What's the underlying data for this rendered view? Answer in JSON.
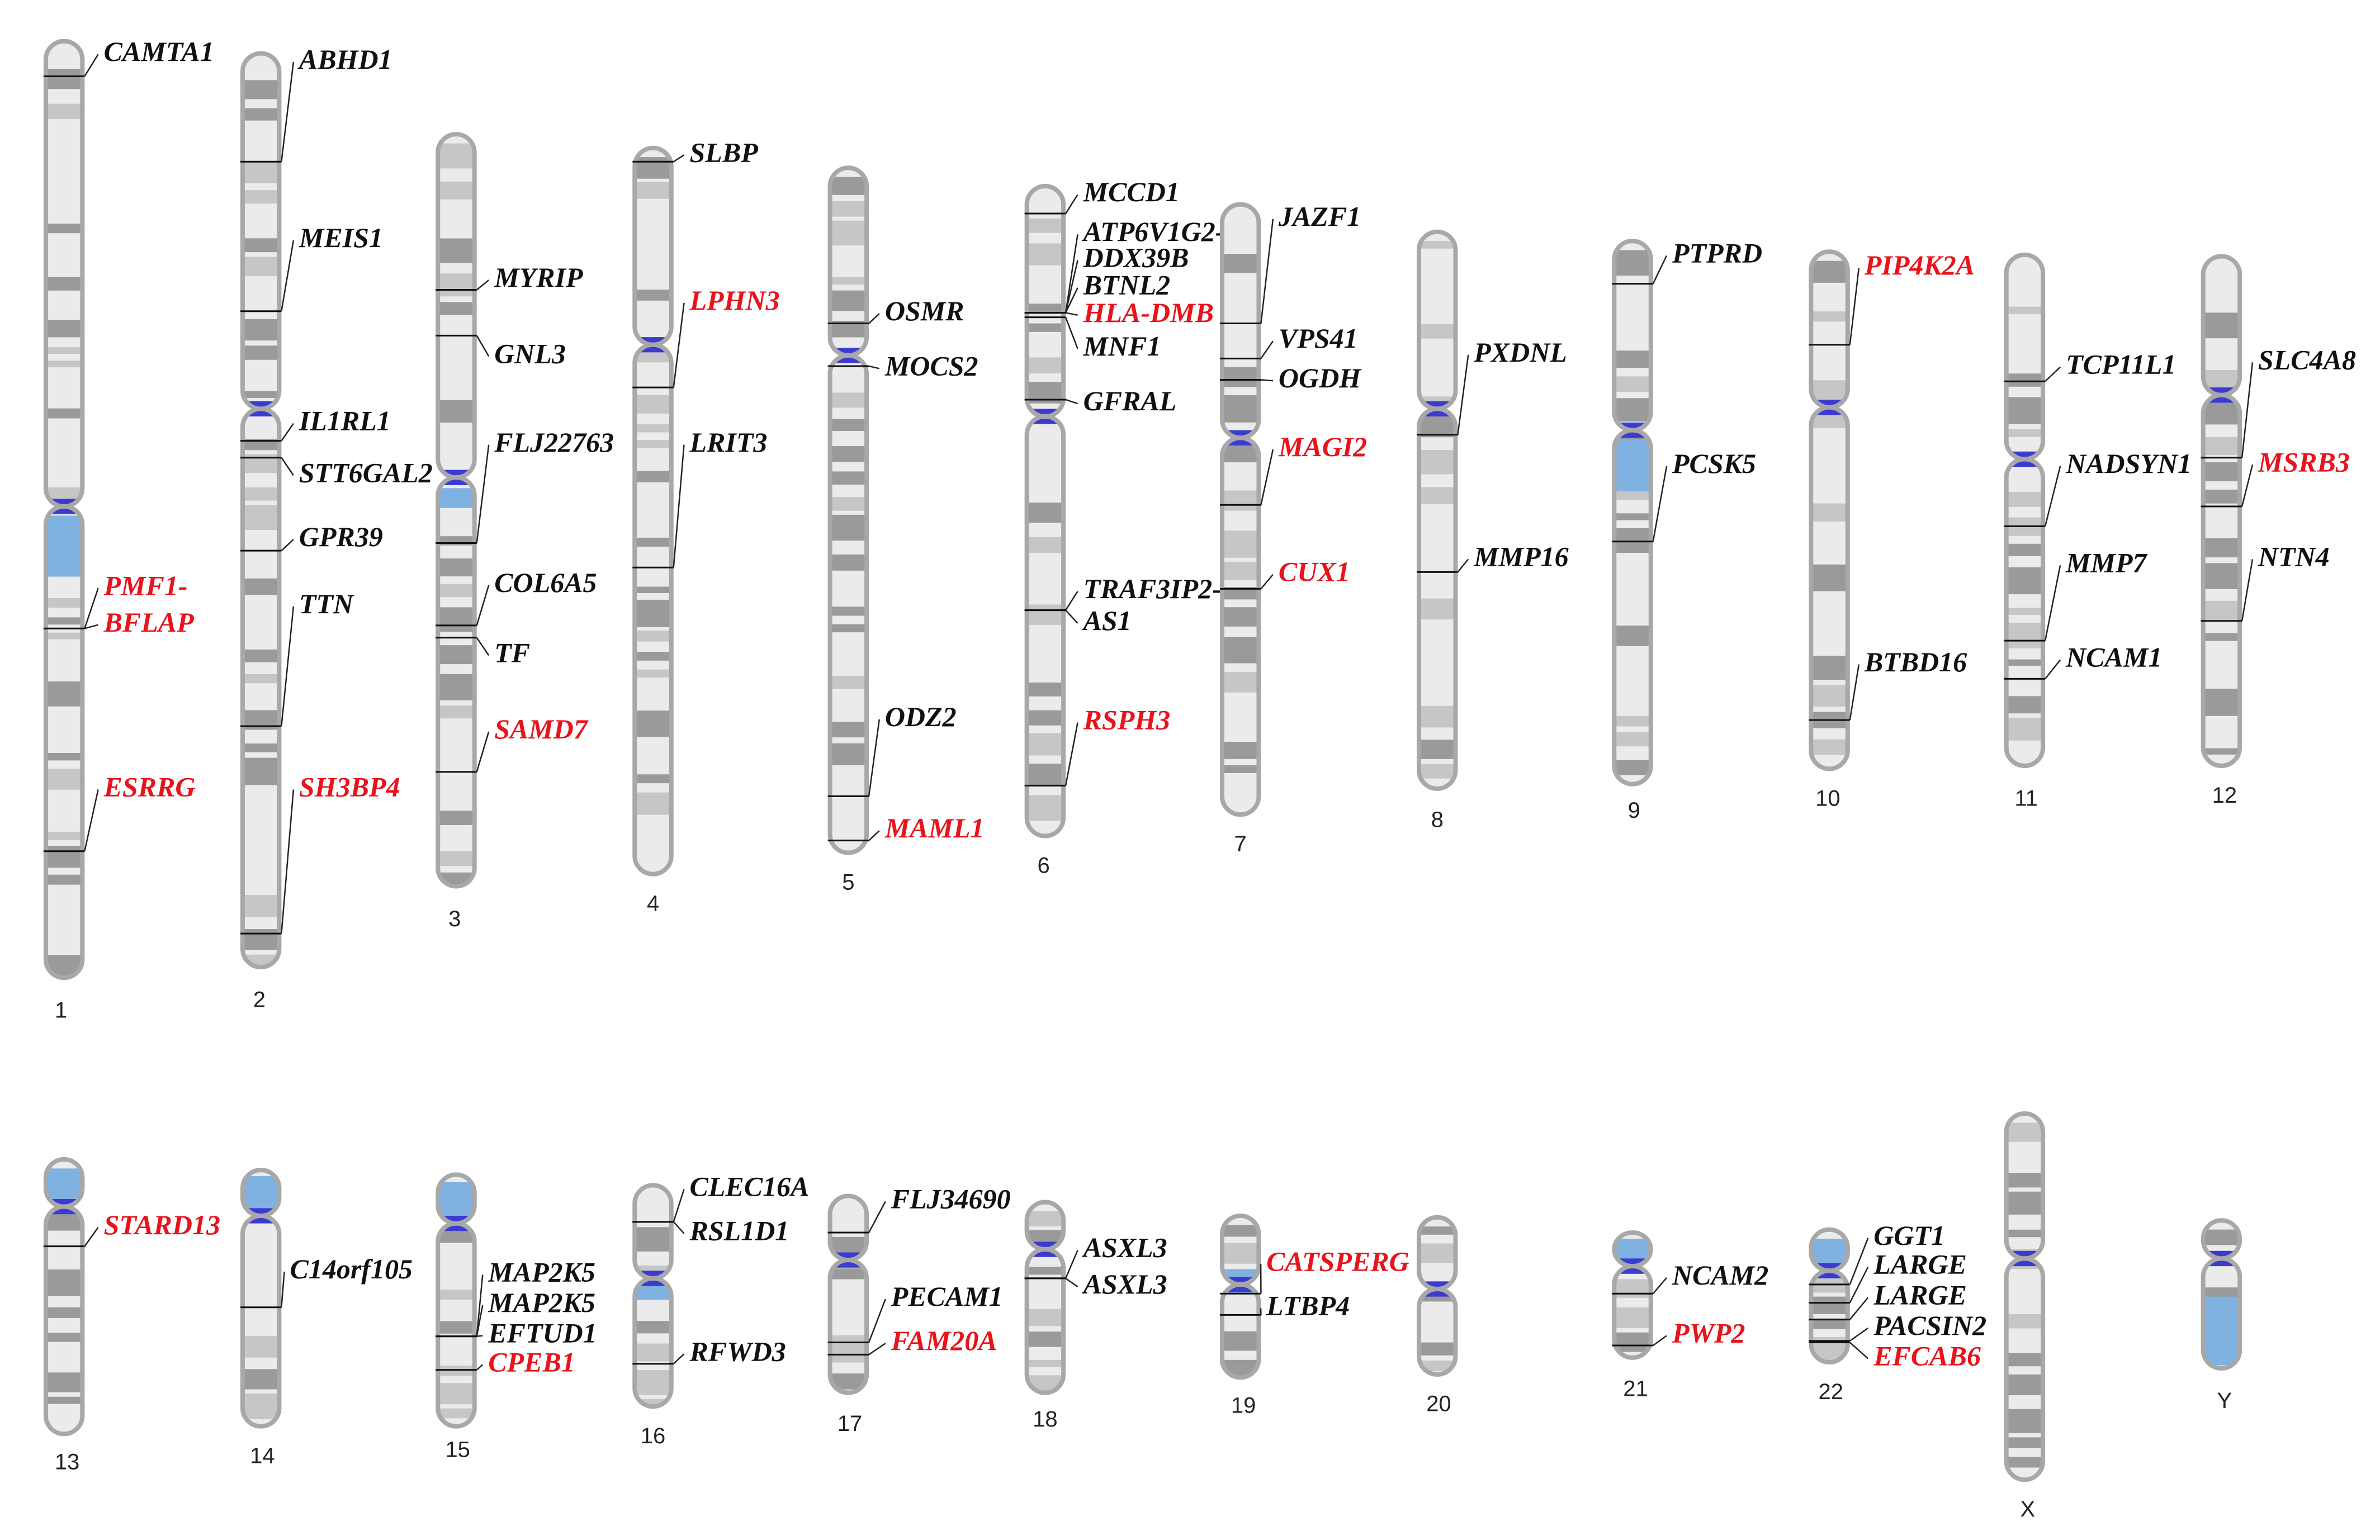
{
  "colors": {
    "outline": "#a8a8a8",
    "band_dark": "#9a9a9a",
    "band_mid": "#c6c6c6",
    "band_light": "#ebebeb",
    "centromere": "#3b3bd1",
    "heterochromatin": "#7fb2e0",
    "gene_black": "#111111",
    "gene_red": "#e8131b"
  },
  "chromosomes": [
    {
      "name": "1",
      "label": "1",
      "genes": [
        {
          "label": "CAMTA1",
          "highlight": false
        },
        {
          "label": "PMF1-",
          "highlight": true
        },
        {
          "label": "BFLAP",
          "highlight": true
        },
        {
          "label": "ESRRG",
          "highlight": true
        }
      ]
    },
    {
      "name": "2",
      "label": "2",
      "genes": [
        {
          "label": "ABHD1",
          "highlight": false
        },
        {
          "label": "MEIS1",
          "highlight": false
        },
        {
          "label": "IL1RL1",
          "highlight": false
        },
        {
          "label": "STT6GAL2",
          "highlight": false
        },
        {
          "label": "GPR39",
          "highlight": false
        },
        {
          "label": "TTN",
          "highlight": false
        },
        {
          "label": "SH3BP4",
          "highlight": true
        }
      ]
    },
    {
      "name": "3",
      "label": "3",
      "genes": [
        {
          "label": "MYRIP",
          "highlight": false
        },
        {
          "label": "GNL3",
          "highlight": false
        },
        {
          "label": "FLJ22763",
          "highlight": false
        },
        {
          "label": "COL6A5",
          "highlight": false
        },
        {
          "label": "TF",
          "highlight": false
        },
        {
          "label": "SAMD7",
          "highlight": true
        }
      ]
    },
    {
      "name": "4",
      "label": "4",
      "genes": [
        {
          "label": "SLBP",
          "highlight": false
        },
        {
          "label": "LPHN3",
          "highlight": true
        },
        {
          "label": "LRIT3",
          "highlight": false
        }
      ]
    },
    {
      "name": "5",
      "label": "5",
      "genes": [
        {
          "label": "OSMR",
          "highlight": false
        },
        {
          "label": "MOCS2",
          "highlight": false
        },
        {
          "label": "ODZ2",
          "highlight": false
        },
        {
          "label": "MAML1",
          "highlight": true
        }
      ]
    },
    {
      "name": "6",
      "label": "6",
      "genes": [
        {
          "label": "MCCD1",
          "highlight": false
        },
        {
          "label": "ATP6V1G2-",
          "highlight": false
        },
        {
          "label": "DDX39B",
          "highlight": false
        },
        {
          "label": "BTNL2",
          "highlight": false
        },
        {
          "label": "HLA-DMB",
          "highlight": true
        },
        {
          "label": "MNF1",
          "highlight": false
        },
        {
          "label": "GFRAL",
          "highlight": false
        },
        {
          "label": "TRAF3IP2-",
          "highlight": false
        },
        {
          "label": "AS1",
          "highlight": false
        },
        {
          "label": "RSPH3",
          "highlight": true
        }
      ]
    },
    {
      "name": "7",
      "label": "7",
      "genes": [
        {
          "label": "JAZF1",
          "highlight": false
        },
        {
          "label": "VPS41",
          "highlight": false
        },
        {
          "label": "OGDH",
          "highlight": false
        },
        {
          "label": "MAGI2",
          "highlight": true
        },
        {
          "label": "CUX1",
          "highlight": true
        }
      ]
    },
    {
      "name": "8",
      "label": "8",
      "genes": [
        {
          "label": "PXDNL",
          "highlight": false
        },
        {
          "label": "MMP16",
          "highlight": false
        }
      ]
    },
    {
      "name": "9",
      "label": "9",
      "genes": [
        {
          "label": "PTPRD",
          "highlight": false
        },
        {
          "label": "PCSK5",
          "highlight": false
        }
      ]
    },
    {
      "name": "10",
      "label": "10",
      "genes": [
        {
          "label": "PIP4K2A",
          "highlight": true
        },
        {
          "label": "BTBD16",
          "highlight": false
        }
      ]
    },
    {
      "name": "11",
      "label": "11",
      "genes": [
        {
          "label": "TCP11L1",
          "highlight": false
        },
        {
          "label": "NADSYN1",
          "highlight": false
        },
        {
          "label": "MMP7",
          "highlight": false
        },
        {
          "label": "NCAM1",
          "highlight": false
        }
      ]
    },
    {
      "name": "12",
      "label": "12",
      "genes": [
        {
          "label": "SLC4A8",
          "highlight": false
        },
        {
          "label": "MSRB3",
          "highlight": true
        },
        {
          "label": "NTN4",
          "highlight": false
        }
      ]
    },
    {
      "name": "13",
      "label": "13",
      "genes": [
        {
          "label": "STARD13",
          "highlight": true
        }
      ]
    },
    {
      "name": "14",
      "label": "14",
      "genes": [
        {
          "label": "C14orf105",
          "highlight": false
        }
      ]
    },
    {
      "name": "15",
      "label": "15",
      "genes": [
        {
          "label": "MAP2K5",
          "highlight": false
        },
        {
          "label": "MAP2K5",
          "highlight": false
        },
        {
          "label": "EFTUD1",
          "highlight": false
        },
        {
          "label": "CPEB1",
          "highlight": true
        }
      ]
    },
    {
      "name": "16",
      "label": "16",
      "genes": [
        {
          "label": "CLEC16A",
          "highlight": false
        },
        {
          "label": "RSL1D1",
          "highlight": false
        },
        {
          "label": "RFWD3",
          "highlight": false
        }
      ]
    },
    {
      "name": "17",
      "label": "17",
      "genes": [
        {
          "label": "FLJ34690",
          "highlight": false
        },
        {
          "label": "PECAM1",
          "highlight": false
        },
        {
          "label": "FAM20A",
          "highlight": true
        }
      ]
    },
    {
      "name": "18",
      "label": "18",
      "genes": [
        {
          "label": "ASXL3",
          "highlight": false
        },
        {
          "label": "ASXL3",
          "highlight": false
        }
      ]
    },
    {
      "name": "19",
      "label": "19",
      "genes": [
        {
          "label": "CATSPERG",
          "highlight": true
        },
        {
          "label": "LTBP4",
          "highlight": false
        }
      ]
    },
    {
      "name": "20",
      "label": "20",
      "genes": []
    },
    {
      "name": "21",
      "label": "21",
      "genes": [
        {
          "label": "NCAM2",
          "highlight": false
        },
        {
          "label": "PWP2",
          "highlight": true
        }
      ]
    },
    {
      "name": "22",
      "label": "22",
      "genes": [
        {
          "label": "GGT1",
          "highlight": false
        },
        {
          "label": "LARGE",
          "highlight": false
        },
        {
          "label": "LARGE",
          "highlight": false
        },
        {
          "label": "PACSIN2",
          "highlight": false
        },
        {
          "label": "EFCAB6",
          "highlight": true
        }
      ]
    },
    {
      "name": "X",
      "label": "X",
      "genes": []
    },
    {
      "name": "Y",
      "label": "Y",
      "genes": []
    }
  ]
}
